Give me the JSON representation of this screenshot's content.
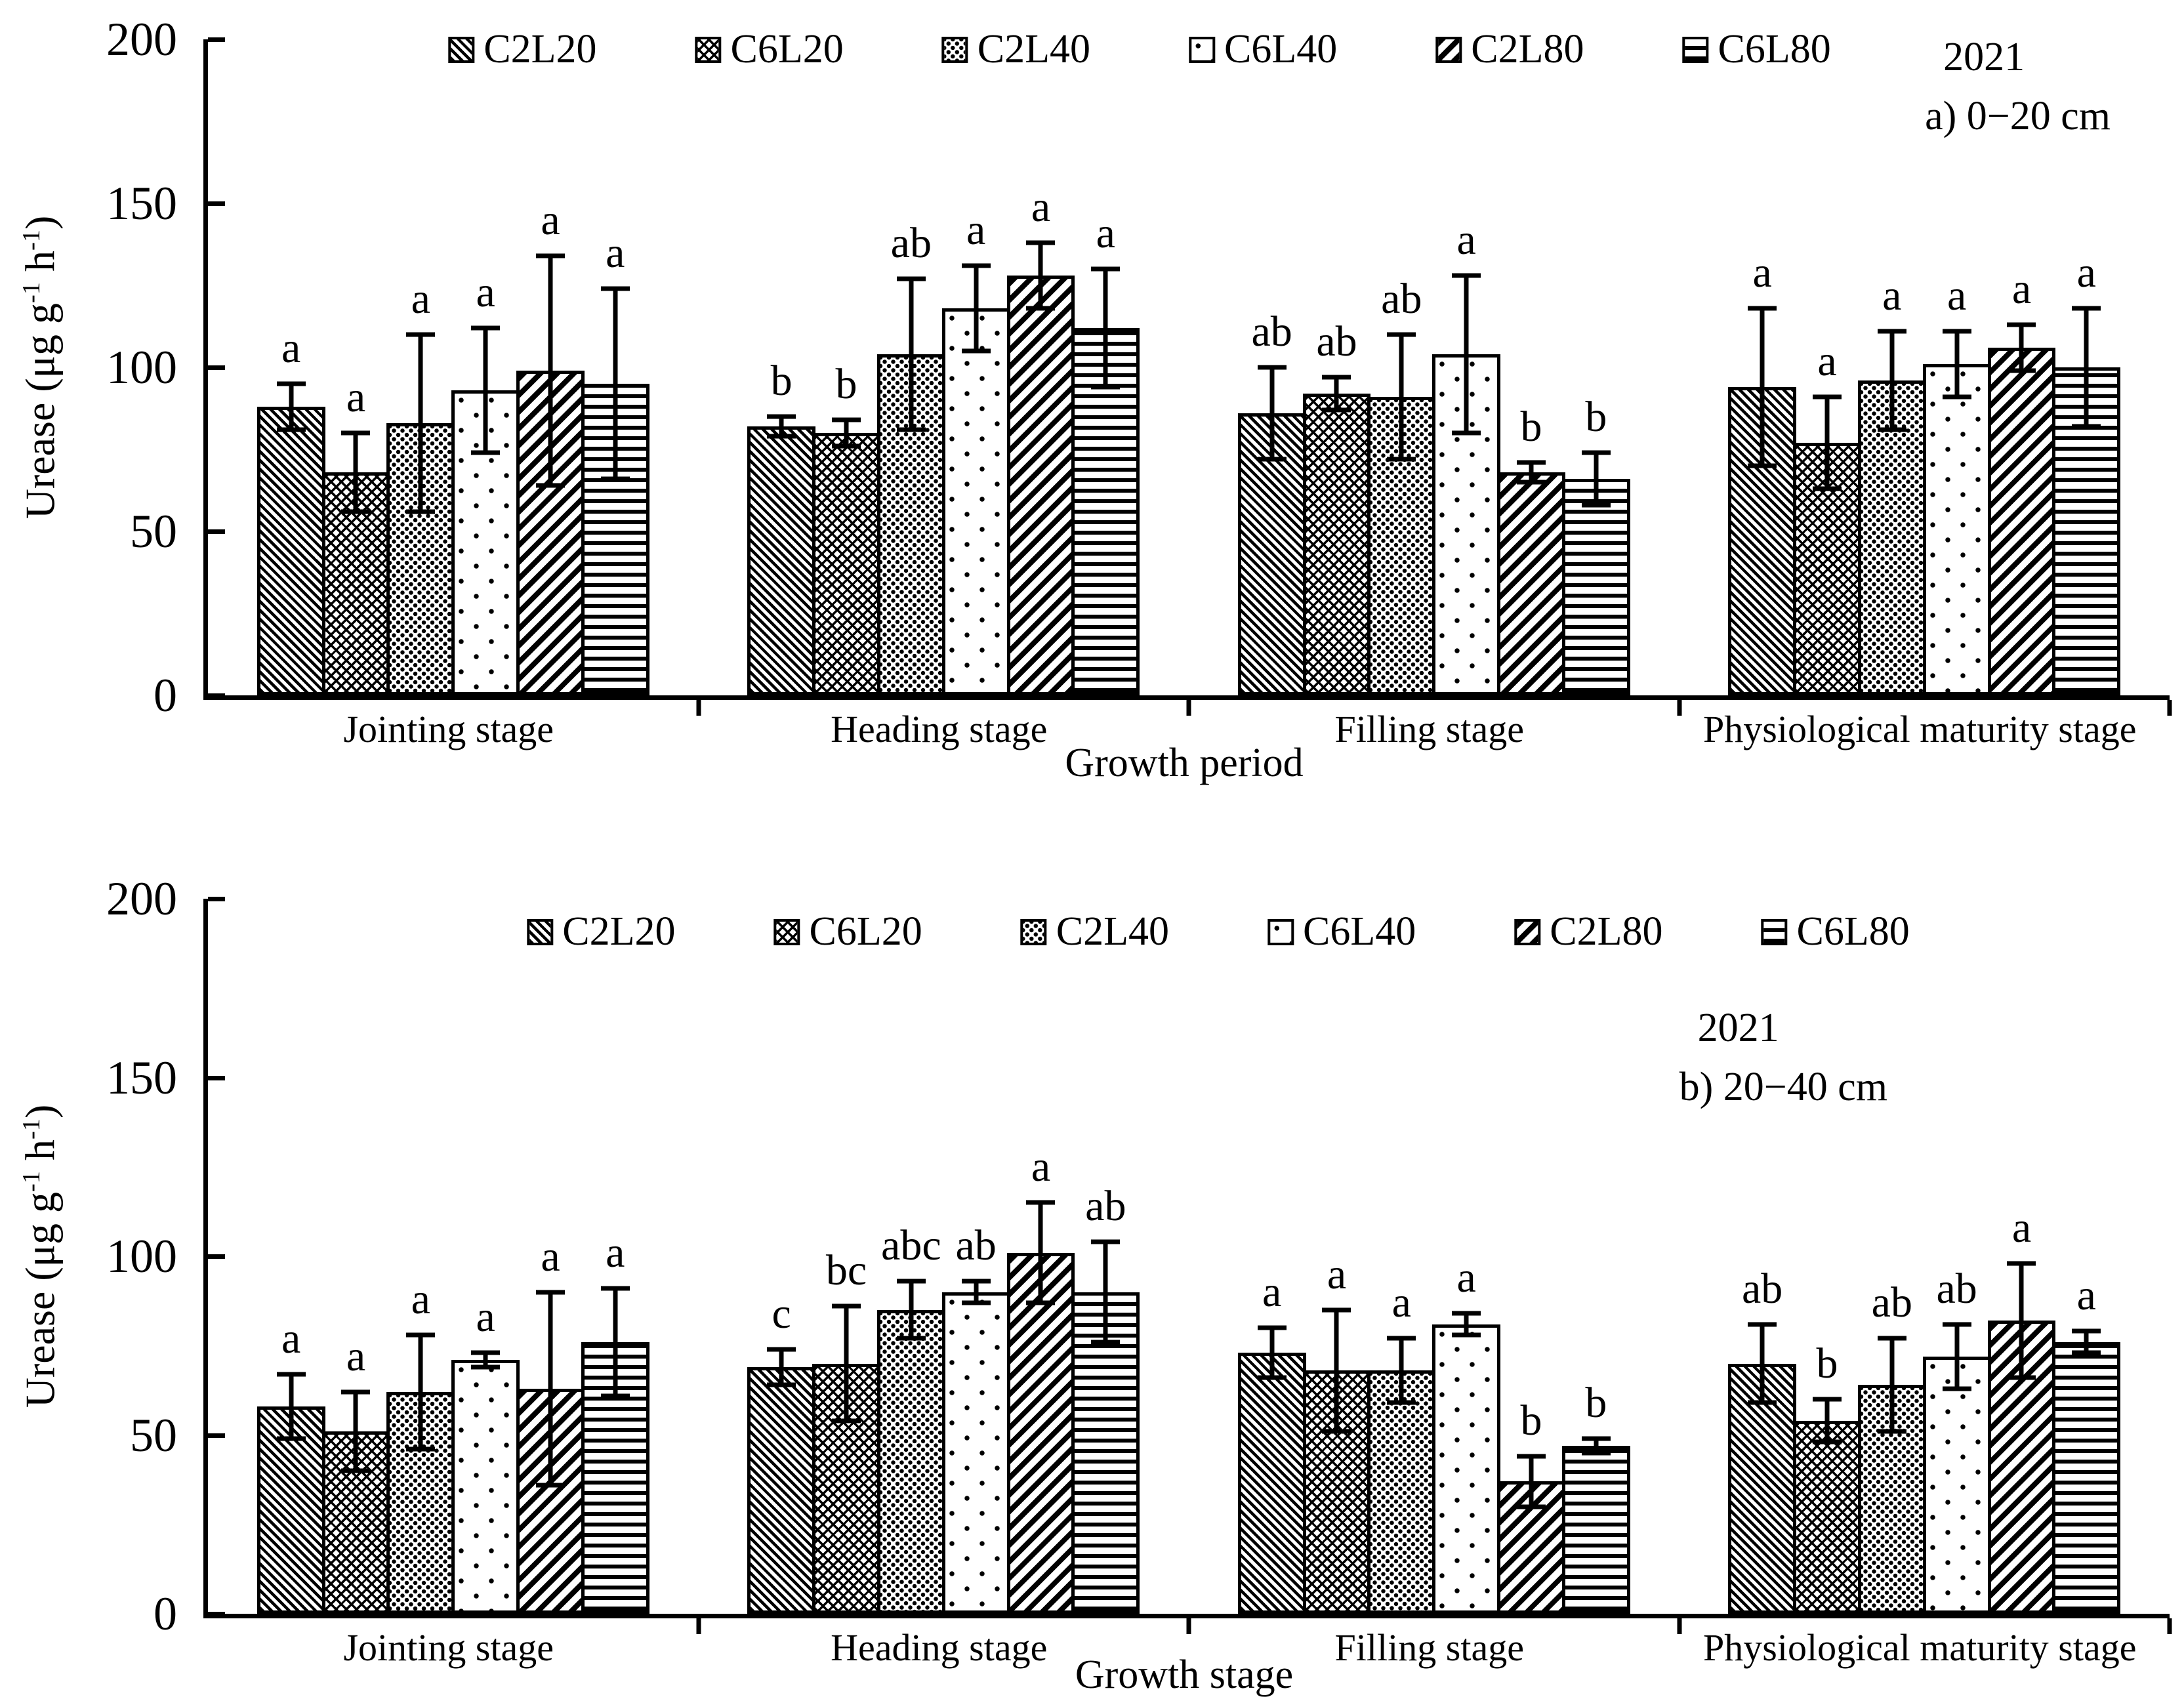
{
  "colors": {
    "foreground": "#000000",
    "background": "#ffffff"
  },
  "y_axis": {
    "label_parts": [
      "Urease (μg g",
      "-1",
      " h",
      "-1",
      ")"
    ],
    "ticks": [
      0,
      50,
      100,
      150,
      200
    ]
  },
  "chart_data": [
    {
      "id": "a",
      "type": "bar",
      "year": "2021",
      "depth_label": "a) 0−20 cm",
      "xlabel": "Growth period",
      "ylim": [
        0,
        200
      ],
      "yticks": [
        0,
        50,
        100,
        150,
        200
      ],
      "grid": false,
      "legend_position": "top-center-inside",
      "categories": [
        "Jointing stage",
        "Heading stage",
        "Filling stage",
        "Physiological maturity stage"
      ],
      "series": [
        {
          "name": "C2L20",
          "pattern": "diagonal-fine-down",
          "values": [
            88,
            82,
            86,
            94
          ],
          "errors": [
            7,
            3,
            14,
            24
          ],
          "letters": [
            "a",
            "b",
            "ab",
            "a"
          ]
        },
        {
          "name": "C6L20",
          "pattern": "diagonal-crosshatch",
          "values": [
            68,
            80,
            92,
            77
          ],
          "errors": [
            12,
            4,
            5,
            14
          ],
          "letters": [
            "a",
            "b",
            "ab",
            "a"
          ]
        },
        {
          "name": "C2L40",
          "pattern": "dots-dense",
          "values": [
            83,
            104,
            91,
            96
          ],
          "errors": [
            27,
            23,
            19,
            15
          ],
          "letters": [
            "a",
            "ab",
            "ab",
            "a"
          ]
        },
        {
          "name": "C6L40",
          "pattern": "dots-sparse",
          "values": [
            93,
            118,
            104,
            101
          ],
          "errors": [
            19,
            13,
            24,
            10
          ],
          "letters": [
            "a",
            "a",
            "a",
            "a"
          ]
        },
        {
          "name": "C2L80",
          "pattern": "diagonal-bold-up",
          "values": [
            99,
            128,
            68,
            106
          ],
          "errors": [
            35,
            10,
            3,
            7
          ],
          "letters": [
            "a",
            "a",
            "b",
            "a"
          ]
        },
        {
          "name": "C6L80",
          "pattern": "horizontal-lines",
          "values": [
            95,
            112,
            66,
            100
          ],
          "errors": [
            29,
            18,
            8,
            18
          ],
          "letters": [
            "a",
            "a",
            "b",
            "a"
          ]
        }
      ]
    },
    {
      "id": "b",
      "type": "bar",
      "year": "2021",
      "depth_label": "b) 20−40 cm",
      "xlabel": "Growth stage",
      "ylim": [
        0,
        200
      ],
      "yticks": [
        0,
        50,
        100,
        150,
        200
      ],
      "grid": false,
      "legend_position": "top-center-inside",
      "categories": [
        "Jointing stage",
        "Heading stage",
        "Filling stage",
        "Physiological maturity stage"
      ],
      "series": [
        {
          "name": "C2L20",
          "pattern": "diagonal-fine-down",
          "values": [
            58,
            69,
            73,
            70
          ],
          "errors": [
            9,
            5,
            7,
            11
          ],
          "letters": [
            "a",
            "c",
            "a",
            "ab"
          ]
        },
        {
          "name": "C6L20",
          "pattern": "diagonal-crosshatch",
          "values": [
            51,
            70,
            68,
            54
          ],
          "errors": [
            11,
            16,
            17,
            6
          ],
          "letters": [
            "a",
            "bc",
            "a",
            "b"
          ]
        },
        {
          "name": "C2L40",
          "pattern": "dots-dense",
          "values": [
            62,
            85,
            68,
            64
          ],
          "errors": [
            16,
            8,
            9,
            13
          ],
          "letters": [
            "a",
            "abc",
            "a",
            "ab"
          ]
        },
        {
          "name": "C6L40",
          "pattern": "dots-sparse",
          "values": [
            71,
            90,
            81,
            72
          ],
          "errors": [
            2,
            3,
            3,
            9
          ],
          "letters": [
            "a",
            "ab",
            "a",
            "ab"
          ]
        },
        {
          "name": "C2L80",
          "pattern": "diagonal-bold-up",
          "values": [
            63,
            101,
            37,
            82
          ],
          "errors": [
            27,
            14,
            7,
            16
          ],
          "letters": [
            "a",
            "a",
            "b",
            "a"
          ]
        },
        {
          "name": "C6L80",
          "pattern": "horizontal-lines",
          "values": [
            76,
            90,
            47,
            76
          ],
          "errors": [
            15,
            14,
            2,
            3
          ],
          "letters": [
            "a",
            "ab",
            "b",
            "a"
          ]
        }
      ]
    }
  ]
}
